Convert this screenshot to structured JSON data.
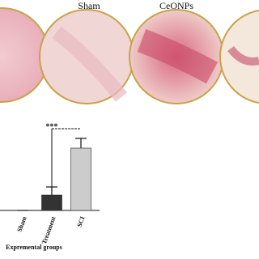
{
  "figure": {
    "panel_labels": [
      "Sham",
      "CeONPs"
    ]
  },
  "chart_data": {
    "type": "bar",
    "categories": [
      "Sham",
      "Treatment",
      "SCI"
    ],
    "values": [
      0,
      19,
      77
    ],
    "errors": [
      0,
      10,
      12
    ],
    "colors": [
      "#333333",
      "#333333",
      "#cccccc"
    ],
    "ylim": [
      0,
      100
    ],
    "x_label": "Expremental groups",
    "annotation": "***"
  }
}
